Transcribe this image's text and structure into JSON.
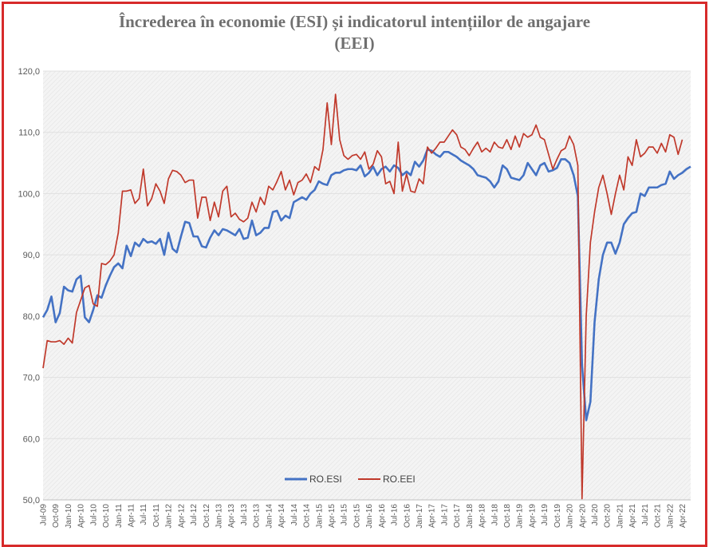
{
  "chart_data": {
    "type": "line",
    "title_line1": "Încrederea în economie  (ESI) și indicatorul intențiilor de angajare",
    "title_line2": "(EEI)",
    "ylim": [
      50,
      120
    ],
    "y_ticks": [
      "50,0",
      "60,0",
      "70,0",
      "80,0",
      "90,0",
      "100,0",
      "110,0",
      "120,0"
    ],
    "x_ticks": [
      {
        "i": 0,
        "label": "Jul-09"
      },
      {
        "i": 3,
        "label": "Oct-09"
      },
      {
        "i": 6,
        "label": "Jan-10"
      },
      {
        "i": 9,
        "label": "Apr-10"
      },
      {
        "i": 12,
        "label": "Jul-10"
      },
      {
        "i": 15,
        "label": "Oct-10"
      },
      {
        "i": 18,
        "label": "Jan-11"
      },
      {
        "i": 21,
        "label": "Apr-11"
      },
      {
        "i": 24,
        "label": "Jul-11"
      },
      {
        "i": 27,
        "label": "Oct-11"
      },
      {
        "i": 30,
        "label": "Jan-12"
      },
      {
        "i": 33,
        "label": "Apr-12"
      },
      {
        "i": 36,
        "label": "Jul-12"
      },
      {
        "i": 39,
        "label": "Oct-12"
      },
      {
        "i": 42,
        "label": "Jan-13"
      },
      {
        "i": 45,
        "label": "Apr-13"
      },
      {
        "i": 48,
        "label": "Jul-13"
      },
      {
        "i": 51,
        "label": "Oct-13"
      },
      {
        "i": 54,
        "label": "Jan-14"
      },
      {
        "i": 57,
        "label": "Apr-14"
      },
      {
        "i": 60,
        "label": "Jul-14"
      },
      {
        "i": 63,
        "label": "Oct-14"
      },
      {
        "i": 66,
        "label": "Jan-15"
      },
      {
        "i": 69,
        "label": "Apr-15"
      },
      {
        "i": 72,
        "label": "Jul-15"
      },
      {
        "i": 75,
        "label": "Oct-15"
      },
      {
        "i": 78,
        "label": "Jan-16"
      },
      {
        "i": 81,
        "label": "Apr-16"
      },
      {
        "i": 84,
        "label": "Jul-16"
      },
      {
        "i": 87,
        "label": "Oct-16"
      },
      {
        "i": 90,
        "label": "Jan-17"
      },
      {
        "i": 93,
        "label": "Apr-17"
      },
      {
        "i": 96,
        "label": "Jul-17"
      },
      {
        "i": 99,
        "label": "Oct-17"
      },
      {
        "i": 102,
        "label": "Jan-18"
      },
      {
        "i": 105,
        "label": "Apr-18"
      },
      {
        "i": 108,
        "label": "Jul-18"
      },
      {
        "i": 111,
        "label": "Oct-18"
      },
      {
        "i": 114,
        "label": "Jan-19"
      },
      {
        "i": 117,
        "label": "Apr-19"
      },
      {
        "i": 120,
        "label": "Jul-19"
      },
      {
        "i": 123,
        "label": "Oct-19"
      },
      {
        "i": 126,
        "label": "Jan-20"
      },
      {
        "i": 129,
        "label": "Apr-20"
      },
      {
        "i": 132,
        "label": "Jul-20"
      },
      {
        "i": 135,
        "label": "Oct-20"
      },
      {
        "i": 138,
        "label": "Jan-21"
      },
      {
        "i": 141,
        "label": "Apr-21"
      },
      {
        "i": 144,
        "label": "Jul-21"
      },
      {
        "i": 147,
        "label": "Oct-21"
      },
      {
        "i": 150,
        "label": "Jan-22"
      },
      {
        "i": 153,
        "label": "Apr-22"
      }
    ],
    "legend_placement": "bottom-center",
    "series": [
      {
        "name": "RO.ESI",
        "color": "#4472c4",
        "values": [
          79.8,
          81,
          83.2,
          79,
          80.5,
          84.8,
          84.2,
          84,
          86,
          86.6,
          79.8,
          79,
          81,
          83.4,
          83,
          85,
          86.6,
          88,
          88.6,
          87.8,
          91.5,
          89.8,
          92,
          91.4,
          92.6,
          92,
          92.2,
          91.8,
          92.6,
          90,
          93.6,
          91,
          90.4,
          93,
          95.4,
          95.2,
          93,
          93,
          91.4,
          91.2,
          92.8,
          94,
          93.2,
          94.2,
          94,
          93.6,
          93.2,
          94.2,
          92.6,
          92.8,
          95.6,
          93.2,
          93.6,
          94.4,
          94.4,
          97,
          97.2,
          95.6,
          96.4,
          96,
          98.6,
          99,
          99.4,
          99,
          100,
          100.6,
          102,
          101.6,
          101.4,
          103,
          103.4,
          103.4,
          103.8,
          104,
          104,
          103.8,
          104.6,
          102.8,
          103.4,
          104.4,
          103,
          104,
          104.4,
          103.6,
          104.6,
          104.2,
          103,
          103.6,
          103,
          105.2,
          104.4,
          105.4,
          107.2,
          107,
          106.4,
          106,
          106.8,
          106.8,
          106.4,
          106,
          105.4,
          105,
          104.6,
          104,
          103,
          102.8,
          102.6,
          102,
          101,
          102,
          104.6,
          104,
          102.6,
          102.4,
          102.2,
          103,
          105,
          104,
          103,
          104.6,
          105,
          103.6,
          103.8,
          104.2,
          105.6,
          105.6,
          105,
          103,
          99.6,
          72,
          63,
          66,
          79,
          86,
          90,
          92,
          92,
          90.2,
          92,
          95,
          96,
          96.8,
          97,
          100,
          99.6,
          101,
          101,
          101,
          101.4,
          101.6,
          103.6,
          102.4,
          103,
          103.4,
          104,
          104.4
        ]
      },
      {
        "name": "RO.EEI",
        "color": "#c0392b",
        "values": [
          71.5,
          76,
          75.8,
          75.8,
          76,
          75.4,
          76.4,
          75.6,
          80.6,
          82.6,
          84.6,
          85,
          82,
          81.6,
          88.6,
          88.4,
          89,
          90,
          93.6,
          100.4,
          100.4,
          100.6,
          98.4,
          99.2,
          104,
          98,
          99.2,
          101.6,
          100.4,
          98.4,
          102.4,
          103.8,
          103.6,
          103,
          101.8,
          102.2,
          102.2,
          96,
          99.4,
          99.4,
          95.6,
          98.6,
          96.2,
          100.4,
          101.2,
          96.2,
          96.8,
          95.8,
          95.4,
          96,
          98.6,
          97,
          99.4,
          98.2,
          101.2,
          100.6,
          102,
          103.6,
          100.6,
          102.2,
          99.8,
          101.8,
          102.2,
          103.2,
          101.8,
          104.4,
          103.8,
          107.2,
          114.8,
          108,
          116.2,
          108.8,
          106.2,
          105.6,
          106.2,
          106.4,
          105.6,
          106.8,
          104,
          104.8,
          107,
          106,
          101.6,
          102,
          100,
          108.4,
          100.4,
          103.2,
          100.4,
          100.2,
          102.4,
          101.6,
          107.6,
          106.6,
          107.4,
          108.4,
          108.4,
          109.4,
          110.4,
          109.6,
          107.6,
          107.2,
          106.2,
          107.4,
          108.4,
          106.8,
          107.4,
          106.8,
          108.4,
          107.6,
          107.4,
          108.8,
          107.2,
          109.4,
          107.6,
          109.8,
          109.2,
          109.6,
          111.2,
          109.2,
          108.8,
          106.4,
          104,
          105.6,
          107,
          107.4,
          109.4,
          108,
          104.6,
          50.2,
          80,
          92,
          97,
          101,
          103,
          100,
          96.6,
          100,
          103,
          100.6,
          106,
          104.6,
          108.8,
          106,
          106.6,
          107.6,
          107.6,
          106.6,
          108.2,
          106.8,
          109.6,
          109.2,
          106.4,
          108.8
        ]
      }
    ]
  }
}
